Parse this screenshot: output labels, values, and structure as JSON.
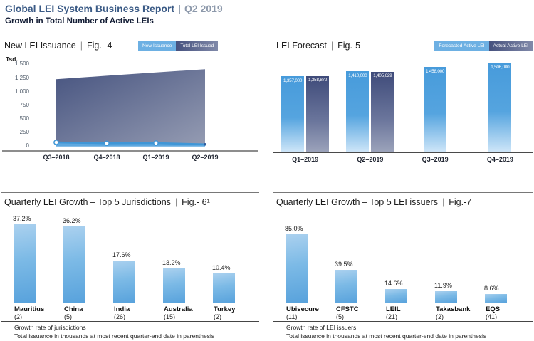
{
  "ui": {
    "pipe": "|"
  },
  "header": {
    "title": "Global LEI System Business Report",
    "separator": "|",
    "period": "Q2 2019",
    "subtitle": "Growth in Total Number of Active LEIs"
  },
  "colors": {
    "accent_light_blue": "#4d9fdc",
    "accent_dark_slate": "#46517e",
    "header_blue": "#3a5a85",
    "header_gray": "#8d99ab"
  },
  "chart_data": [
    {
      "type": "area",
      "title": "New LEI Issuance",
      "fig": "Fig.- 4",
      "unit": "Tsd.",
      "x": [
        "Q3–2018",
        "Q4–2018",
        "Q1–2019",
        "Q2–2019"
      ],
      "ylim": [
        0,
        1500
      ],
      "y_ticks": [
        {
          "label": "1,500",
          "value": 1500
        },
        {
          "label": "1,250",
          "value": 1250
        },
        {
          "label": "1,000",
          "value": 1000
        },
        {
          "label": "750",
          "value": 750
        },
        {
          "label": "500",
          "value": 500
        },
        {
          "label": "250",
          "value": 250
        },
        {
          "label": "0",
          "value": 0
        }
      ],
      "series": [
        {
          "name": "New Issuance",
          "values": [
            65,
            48,
            52,
            29
          ]
        },
        {
          "name": "Total LEI Issued",
          "values": [
            1228,
            1290,
            1352,
            1410
          ]
        }
      ],
      "legend_position": "top-right",
      "grid": false
    },
    {
      "type": "bar",
      "title": "LEI Forecast",
      "fig": "Fig.-5",
      "categories": [
        "Q1–2019",
        "Q2–2019",
        "Q3–2019",
        "Q4–2019"
      ],
      "series": [
        {
          "name": "Forecasted Active LEI",
          "values": [
            1357000,
            1410000,
            1458000,
            1506000
          ],
          "labels": [
            "1,357,000",
            "1,410,000",
            "1,458,000",
            "1,506,000"
          ]
        },
        {
          "name": "Actual Active LEI",
          "values": [
            1358872,
            1405629,
            null,
            null
          ],
          "labels": [
            "1,358,872",
            "1,405,629",
            null,
            null
          ]
        }
      ],
      "legend_position": "top-right",
      "grid": false
    },
    {
      "type": "bar",
      "title": "Quarterly LEI Growth – Top 5 Jurisdictions",
      "fig": "Fig.- 6¹",
      "categories": [
        "Mauritius",
        "China",
        "India",
        "Australia",
        "Turkey"
      ],
      "counts": [
        "(2)",
        "(5)",
        "(26)",
        "(15)",
        "(2)"
      ],
      "values": [
        37.2,
        36.2,
        17.6,
        13.2,
        10.4
      ],
      "labels": [
        "37.2%",
        "36.2%",
        "17.6%",
        "13.2%",
        "10.4%"
      ],
      "footnote1": "Growth rate of jurisdictions",
      "footnote2": "Total issuance in thousands at most recent quarter-end date in parenthesis",
      "grid": false
    },
    {
      "type": "bar",
      "title": "Quarterly LEI Growth – Top 5 LEI issuers",
      "fig": "Fig.-7",
      "categories": [
        "Ubisecure",
        "CFSTC",
        "LEIL",
        "Takasbank",
        "EQS"
      ],
      "counts": [
        "(11)",
        "(5)",
        "(21)",
        "(2)",
        "(41)"
      ],
      "values": [
        85.0,
        39.5,
        14.6,
        11.9,
        8.6
      ],
      "labels": [
        "85.0%",
        "39.5%",
        "14.6%",
        "11.9%",
        "8.6%"
      ],
      "footnote1": "Growth rate of LEI issuers",
      "footnote2": "Total issuance in thousands at most recent quarter-end date in parenthesis",
      "grid": false
    }
  ]
}
